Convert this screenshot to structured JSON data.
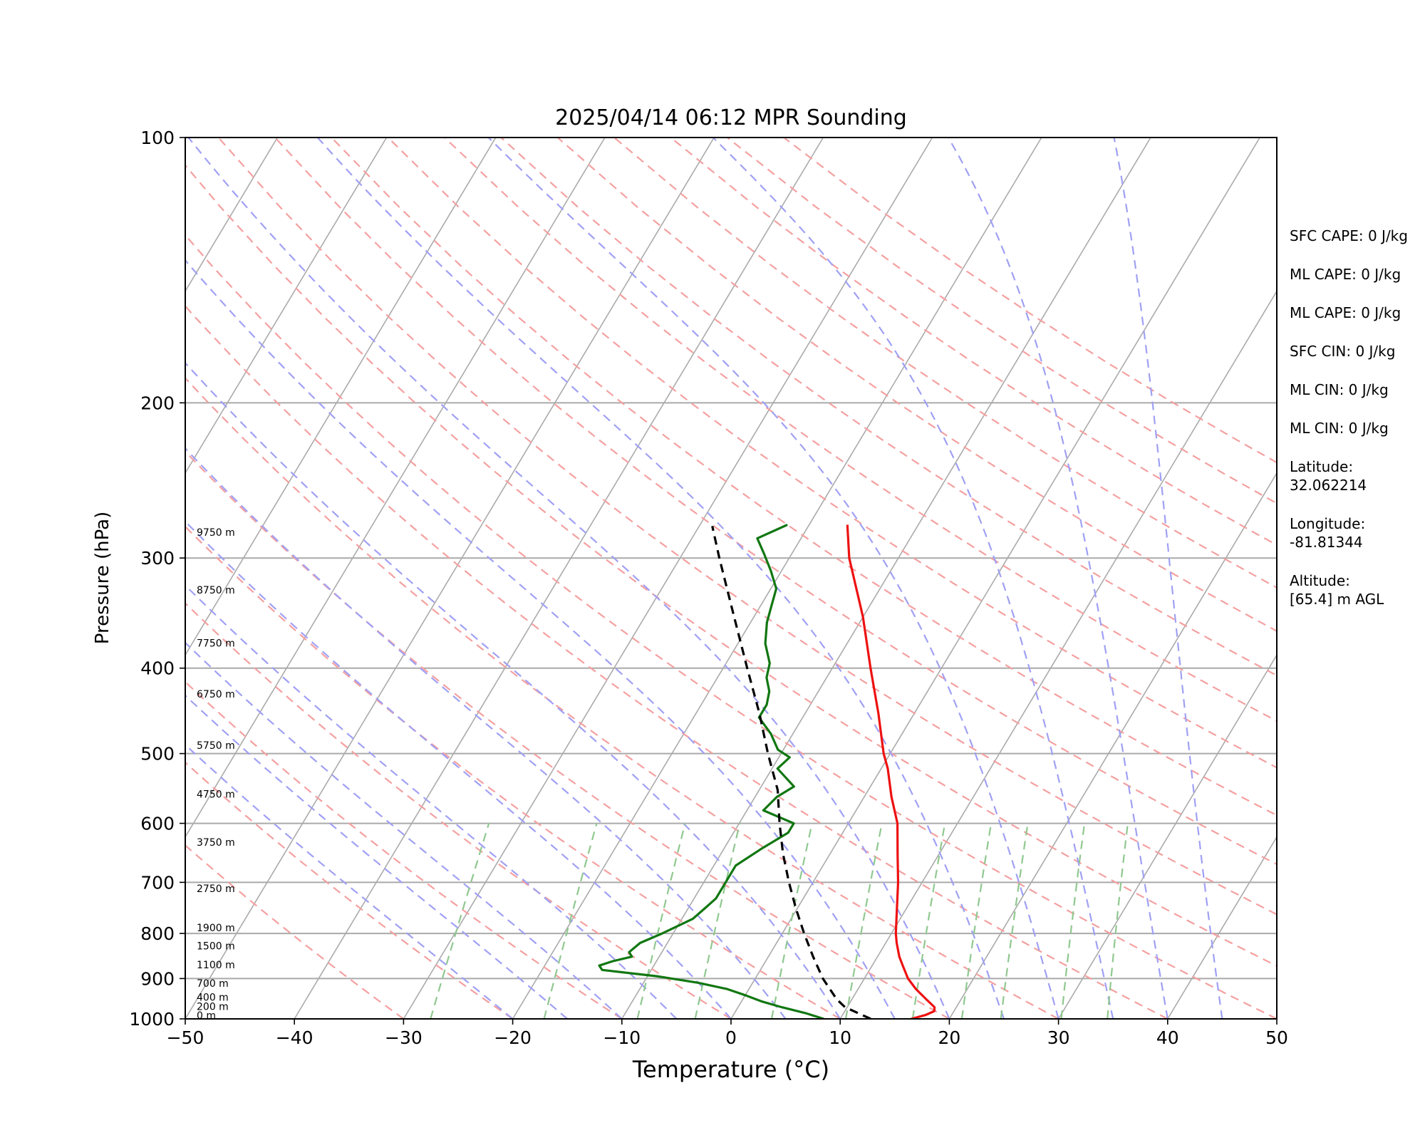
{
  "chart_data": {
    "type": "skew-t",
    "title": "2025/04/14 06:12 MPR Sounding",
    "xlabel": "Temperature (°C)",
    "ylabel": "Pressure (hPa)",
    "xlim": [
      -50,
      50
    ],
    "ylim": [
      1000,
      100
    ],
    "y_scale": "log",
    "x_ticks": [
      "−50",
      "−40",
      "−30",
      "−20",
      "−10",
      "0",
      "10",
      "20",
      "30",
      "40",
      "50"
    ],
    "y_ticks": [
      1000,
      900,
      800,
      700,
      600,
      500,
      400,
      300,
      200,
      100
    ],
    "grid": true,
    "series": [
      {
        "color": "#ee1111",
        "points": [
          [
            1000,
            16.5
          ],
          [
            990,
            17.6
          ],
          [
            980,
            18.2
          ],
          [
            970,
            18.0
          ],
          [
            950,
            16.8
          ],
          [
            925,
            15.3
          ],
          [
            900,
            14.0
          ],
          [
            870,
            12.8
          ],
          [
            850,
            12.0
          ],
          [
            820,
            11.0
          ],
          [
            800,
            10.4
          ],
          [
            760,
            9.4
          ],
          [
            700,
            7.8
          ],
          [
            650,
            6.2
          ],
          [
            600,
            4.5
          ],
          [
            560,
            2.5
          ],
          [
            520,
            0.6
          ],
          [
            500,
            -0.6
          ],
          [
            450,
            -3.3
          ],
          [
            400,
            -6.5
          ],
          [
            350,
            -10.0
          ],
          [
            300,
            -14.5
          ],
          [
            275,
            -16.5
          ]
        ]
      },
      {
        "color": "#117711",
        "points": [
          [
            1000,
            8.5
          ],
          [
            985,
            6.5
          ],
          [
            970,
            4.0
          ],
          [
            955,
            1.8
          ],
          [
            940,
            0.0
          ],
          [
            925,
            -2.0
          ],
          [
            910,
            -5.0
          ],
          [
            895,
            -9.0
          ],
          [
            880,
            -14.5
          ],
          [
            870,
            -15.0
          ],
          [
            860,
            -14.0
          ],
          [
            850,
            -12.5
          ],
          [
            840,
            -13.0
          ],
          [
            820,
            -12.5
          ],
          [
            800,
            -11.0
          ],
          [
            770,
            -9.0
          ],
          [
            750,
            -8.5
          ],
          [
            730,
            -8.0
          ],
          [
            700,
            -8.0
          ],
          [
            670,
            -8.0
          ],
          [
            640,
            -6.5
          ],
          [
            615,
            -5.0
          ],
          [
            600,
            -5.0
          ],
          [
            580,
            -8.5
          ],
          [
            560,
            -8.0
          ],
          [
            545,
            -7.0
          ],
          [
            520,
            -9.5
          ],
          [
            505,
            -9.0
          ],
          [
            495,
            -10.5
          ],
          [
            475,
            -12.0
          ],
          [
            455,
            -14.0
          ],
          [
            440,
            -14.0
          ],
          [
            425,
            -14.5
          ],
          [
            410,
            -15.5
          ],
          [
            395,
            -16.0
          ],
          [
            375,
            -17.5
          ],
          [
            355,
            -18.5
          ],
          [
            340,
            -19.0
          ],
          [
            325,
            -19.5
          ],
          [
            310,
            -21.0
          ],
          [
            297,
            -22.5
          ],
          [
            285,
            -24.0
          ],
          [
            275,
            -22.0
          ]
        ]
      },
      {
        "color": "#000000",
        "style": "dashed",
        "points": [
          [
            1000,
            12.8
          ],
          [
            970,
            9.8
          ],
          [
            950,
            8.6
          ],
          [
            900,
            6.2
          ],
          [
            850,
            4.1
          ],
          [
            800,
            2.0
          ],
          [
            750,
            -0.1
          ],
          [
            700,
            -2.2
          ],
          [
            650,
            -4.3
          ],
          [
            600,
            -6.3
          ],
          [
            550,
            -8.3
          ],
          [
            500,
            -11.2
          ],
          [
            450,
            -14.2
          ],
          [
            400,
            -17.8
          ],
          [
            350,
            -21.8
          ],
          [
            300,
            -26.4
          ],
          [
            276,
            -28.8
          ]
        ]
      }
    ],
    "height_labels": [
      {
        "text": "0 m",
        "p": 1000
      },
      {
        "text": "200 m",
        "p": 976.7
      },
      {
        "text": "400 m",
        "p": 954
      },
      {
        "text": "700 m",
        "p": 920
      },
      {
        "text": "1100 m",
        "p": 876
      },
      {
        "text": "1500 m",
        "p": 834
      },
      {
        "text": "1900 m",
        "p": 795
      },
      {
        "text": "2750 m",
        "p": 718
      },
      {
        "text": "3750 m",
        "p": 636
      },
      {
        "text": "4750 m",
        "p": 561
      },
      {
        "text": "5750 m",
        "p": 494
      },
      {
        "text": "6750 m",
        "p": 432
      },
      {
        "text": "7750 m",
        "p": 378
      },
      {
        "text": "8750 m",
        "p": 329
      },
      {
        "text": "9750 m",
        "p": 283
      }
    ],
    "reference_lines": {
      "dry_adiabats_color": "#f4a0a0",
      "moist_adiabats_color": "#a0a0f4",
      "mixing_ratio_color": "#90c890",
      "isotherm_color": "#aaaaaa"
    }
  },
  "info": [
    {
      "label": "SFC CAPE: 0 J/kg"
    },
    {
      "label": "ML CAPE: 0 J/kg"
    },
    {
      "label": "ML CAPE: 0 J/kg"
    },
    {
      "label": "SFC CIN: 0 J/kg"
    },
    {
      "label": "ML CIN: 0 J/kg"
    },
    {
      "label": "ML CIN: 0 J/kg"
    },
    {
      "label": "Latitude:",
      "value": "32.062214"
    },
    {
      "label": "Longitude:",
      "value": "-81.81344"
    },
    {
      "label": "Altitude:",
      "value": "[65.4] m AGL"
    }
  ]
}
